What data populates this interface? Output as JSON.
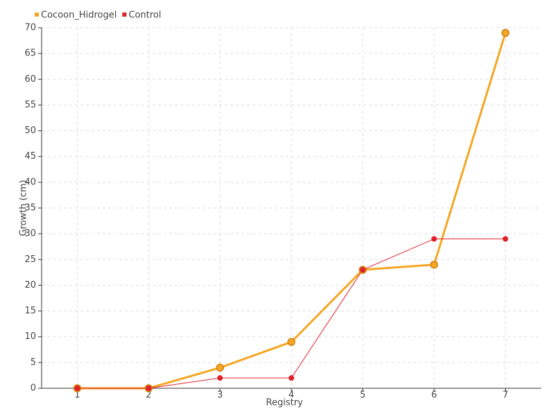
{
  "chart_data": {
    "type": "line",
    "x_label": "Registry",
    "y_label": "Growth (cm)",
    "x": [
      1,
      2,
      3,
      4,
      5,
      6,
      7
    ],
    "series": [
      {
        "name": "Cocoon_Hidrogel",
        "color": "#f5a623",
        "values": [
          0,
          0,
          4,
          9,
          23,
          24,
          69
        ]
      },
      {
        "name": "Control",
        "color": "#e0202a",
        "values": [
          0,
          0,
          2,
          2,
          23,
          29,
          29
        ]
      }
    ],
    "xlim": [
      0.5,
      7.5
    ],
    "xticks": [
      1,
      2,
      3,
      4,
      5,
      6,
      7
    ],
    "ylim": [
      0,
      70
    ],
    "yticks": [
      0,
      5,
      10,
      15,
      20,
      25,
      30,
      35,
      40,
      45,
      50,
      55,
      60,
      65,
      70
    ],
    "grid": true,
    "legend": "top-left"
  }
}
